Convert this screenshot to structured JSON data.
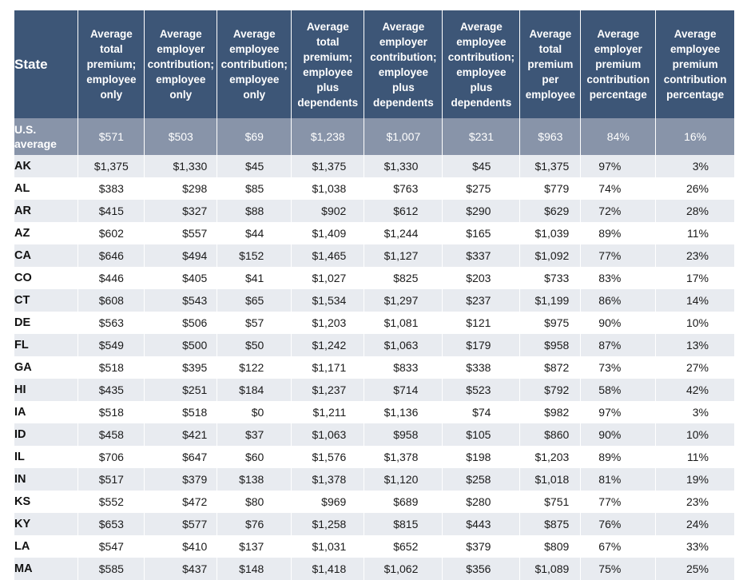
{
  "headers": [
    "State",
    "Average total premium; employee only",
    "Average employer contribution; employee only",
    "Average employee contribution; employee only",
    "Average total premium; employee plus dependents",
    "Average employer contribution; employee plus dependents",
    "Average employee contribution; employee plus dependents",
    "Average total premium per employee",
    "Average employer premium contribution percentage",
    "Average employee premium contribution percentage"
  ],
  "us_average": [
    "U.S. average",
    "$571",
    "$503",
    "$69",
    "$1,238",
    "$1,007",
    "$231",
    "$963",
    "84%",
    "16%"
  ],
  "rows": [
    [
      "AK",
      "$1,375",
      "$1,330",
      "$45",
      "$1,375",
      "$1,330",
      "$45",
      "$1,375",
      "97%",
      "3%"
    ],
    [
      "AL",
      "$383",
      "$298",
      "$85",
      "$1,038",
      "$763",
      "$275",
      "$779",
      "74%",
      "26%"
    ],
    [
      "AR",
      "$415",
      "$327",
      "$88",
      "$902",
      "$612",
      "$290",
      "$629",
      "72%",
      "28%"
    ],
    [
      "AZ",
      "$602",
      "$557",
      "$44",
      "$1,409",
      "$1,244",
      "$165",
      "$1,039",
      "89%",
      "11%"
    ],
    [
      "CA",
      "$646",
      "$494",
      "$152",
      "$1,465",
      "$1,127",
      "$337",
      "$1,092",
      "77%",
      "23%"
    ],
    [
      "CO",
      "$446",
      "$405",
      "$41",
      "$1,027",
      "$825",
      "$203",
      "$733",
      "83%",
      "17%"
    ],
    [
      "CT",
      "$608",
      "$543",
      "$65",
      "$1,534",
      "$1,297",
      "$237",
      "$1,199",
      "86%",
      "14%"
    ],
    [
      "DE",
      "$563",
      "$506",
      "$57",
      "$1,203",
      "$1,081",
      "$121",
      "$975",
      "90%",
      "10%"
    ],
    [
      "FL",
      "$549",
      "$500",
      "$50",
      "$1,242",
      "$1,063",
      "$179",
      "$958",
      "87%",
      "13%"
    ],
    [
      "GA",
      "$518",
      "$395",
      "$122",
      "$1,171",
      "$833",
      "$338",
      "$872",
      "73%",
      "27%"
    ],
    [
      "HI",
      "$435",
      "$251",
      "$184",
      "$1,237",
      "$714",
      "$523",
      "$792",
      "58%",
      "42%"
    ],
    [
      "IA",
      "$518",
      "$518",
      "$0",
      "$1,211",
      "$1,136",
      "$74",
      "$982",
      "97%",
      "3%"
    ],
    [
      "ID",
      "$458",
      "$421",
      "$37",
      "$1,063",
      "$958",
      "$105",
      "$860",
      "90%",
      "10%"
    ],
    [
      "IL",
      "$706",
      "$647",
      "$60",
      "$1,576",
      "$1,378",
      "$198",
      "$1,203",
      "89%",
      "11%"
    ],
    [
      "IN",
      "$517",
      "$379",
      "$138",
      "$1,378",
      "$1,120",
      "$258",
      "$1,018",
      "81%",
      "19%"
    ],
    [
      "KS",
      "$552",
      "$472",
      "$80",
      "$969",
      "$689",
      "$280",
      "$751",
      "77%",
      "23%"
    ],
    [
      "KY",
      "$653",
      "$577",
      "$76",
      "$1,258",
      "$815",
      "$443",
      "$875",
      "76%",
      "24%"
    ],
    [
      "LA",
      "$547",
      "$410",
      "$137",
      "$1,031",
      "$652",
      "$379",
      "$809",
      "67%",
      "33%"
    ],
    [
      "MA",
      "$585",
      "$437",
      "$148",
      "$1,418",
      "$1,062",
      "$356",
      "$1,089",
      "75%",
      "25%"
    ]
  ]
}
